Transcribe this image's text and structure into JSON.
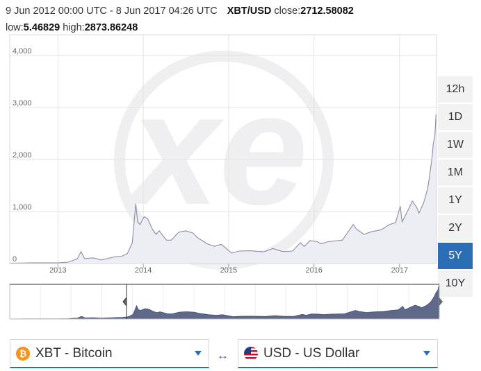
{
  "header": {
    "date_range": "9 Jun 2012 00:00 UTC - 8 Jun 2017 04:26 UTC",
    "pair": "XBT/USD",
    "close_label": "close:",
    "close_value": "2712.58082",
    "low_label": "low:",
    "low_value": "5.46829",
    "high_label": "high:",
    "high_value": "2873.86248"
  },
  "range_buttons": [
    "12h",
    "1D",
    "1W",
    "1M",
    "1Y",
    "2Y",
    "5Y",
    "10Y"
  ],
  "active_range": "5Y",
  "converter": {
    "from_label": "XBT - Bitcoin",
    "from_icon": "bitcoin-icon",
    "to_label": "USD - US Dollar",
    "to_icon": "us-flag-icon",
    "swap_icon": "swap-arrows-icon"
  },
  "colors": {
    "accent": "#2c6eb5",
    "line": "#8a8ba8",
    "navigator_fill": "#5f6889",
    "bitcoin": "#f7931a"
  },
  "chart_data": {
    "type": "area",
    "title": "",
    "xlabel": "",
    "ylabel": "",
    "x_tick_labels": [
      "2013",
      "2014",
      "2015",
      "2016",
      "2017"
    ],
    "y_tick_labels": [
      "0",
      "1,000",
      "2,000",
      "3,000",
      "4,000"
    ],
    "ylim": [
      0,
      4000
    ],
    "xlim": [
      "2012-06-09",
      "2017-06-08"
    ],
    "grid": true,
    "series": [
      {
        "x": [
          "2012-06-09",
          "2012-08-15",
          "2012-09-15",
          "2012-11-20",
          "2013-01-01",
          "2013-02-15",
          "2013-03-25",
          "2013-04-10",
          "2013-04-25",
          "2013-06-01",
          "2013-07-05",
          "2013-09-01",
          "2013-10-01",
          "2013-10-25",
          "2013-11-15",
          "2013-11-30",
          "2013-12-08",
          "2013-12-18",
          "2014-01-05",
          "2014-01-20",
          "2014-02-10",
          "2014-02-25",
          "2014-03-10",
          "2014-04-10",
          "2014-05-01",
          "2014-06-01",
          "2014-07-01",
          "2014-08-01",
          "2014-08-20",
          "2014-10-01",
          "2014-11-01",
          "2014-12-01",
          "2015-01-14",
          "2015-02-15",
          "2015-04-01",
          "2015-06-01",
          "2015-07-10",
          "2015-08-20",
          "2015-10-01",
          "2015-11-04",
          "2015-11-20",
          "2015-12-15",
          "2016-01-15",
          "2016-02-01",
          "2016-03-01",
          "2016-05-01",
          "2016-06-17",
          "2016-07-01",
          "2016-08-02",
          "2016-09-01",
          "2016-10-15",
          "2016-11-15",
          "2016-12-15",
          "2017-01-04",
          "2017-01-12",
          "2017-02-01",
          "2017-02-25",
          "2017-03-15",
          "2017-03-25",
          "2017-04-15",
          "2017-05-01",
          "2017-05-10",
          "2017-05-20",
          "2017-05-25",
          "2017-06-01",
          "2017-06-06",
          "2017-06-08"
        ],
        "values": [
          5.5,
          11,
          12,
          12,
          13,
          27,
          92,
          230,
          95,
          110,
          70,
          128,
          140,
          190,
          400,
          1150,
          800,
          750,
          900,
          860,
          650,
          560,
          630,
          450,
          450,
          600,
          630,
          590,
          500,
          380,
          330,
          370,
          200,
          240,
          245,
          225,
          290,
          230,
          240,
          400,
          330,
          440,
          420,
          380,
          420,
          450,
          750,
          660,
          560,
          610,
          650,
          740,
          790,
          1100,
          800,
          980,
          1200,
          1080,
          970,
          1180,
          1440,
          1700,
          2050,
          2300,
          2450,
          2870,
          2712
        ]
      }
    ]
  }
}
